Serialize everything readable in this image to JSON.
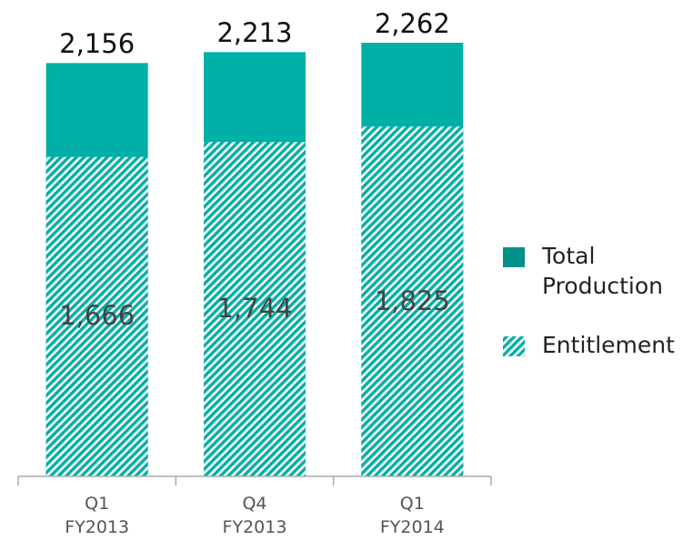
{
  "chart_data": {
    "type": "bar",
    "categories": [
      "Q1 FY2013",
      "Q4 FY2013",
      "Q1 FY2014"
    ],
    "series": [
      {
        "name": "Total Production",
        "color": "#00afa5",
        "legend_color": "#00918a",
        "values": [
          2156,
          2213,
          2262
        ],
        "value_labels": [
          "2,156",
          "2,213",
          "2,262"
        ]
      },
      {
        "name": "Entitlement",
        "color": "#00afa5",
        "pattern": "hatch",
        "values": [
          1666,
          1744,
          1825
        ],
        "value_labels": [
          "1,666",
          "1,744",
          "1,825"
        ]
      }
    ]
  }
}
